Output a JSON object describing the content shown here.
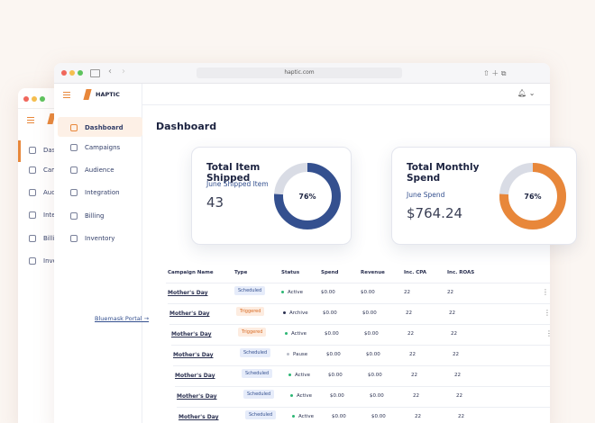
{
  "browser": {
    "url": "haptic.com"
  },
  "brand": "HAPTIC",
  "sidebar": {
    "items": [
      "Dashboard",
      "Campaigns",
      "Audience",
      "Integration",
      "Billing",
      "Inventory"
    ],
    "portal": "Bluemask Portal →"
  },
  "page_title": "Dashboard",
  "cards": [
    {
      "title": "Total Item Shipped",
      "subtitle": "June Shipped Item",
      "value": "43",
      "percent": {
        "value": 76,
        "label": "76%"
      },
      "color": "#34508f"
    },
    {
      "title": "Total Monthly Spend",
      "subtitle": "June Spend",
      "value": "$764.24",
      "percent": {
        "value": 76,
        "label": "76%"
      },
      "color": "#e8873a"
    }
  ],
  "table": {
    "columns": [
      "Campaign Name",
      "Type",
      "Status",
      "Spend",
      "Revenue",
      "Inc. CPA",
      "Inc. ROAS"
    ],
    "rows": [
      [
        "Mother's Day",
        "Scheduled",
        "Active",
        "$0.00",
        "$0.00",
        22,
        22
      ],
      [
        "Mother's Day",
        "Triggered",
        "Archive",
        "$0.00",
        "$0.00",
        22,
        22
      ],
      [
        "Mother's Day",
        "Triggered",
        "Active",
        "$0.00",
        "$0.00",
        22,
        22
      ],
      [
        "Mother's Day",
        "Scheduled",
        "Pause",
        "$0.00",
        "$0.00",
        22,
        22
      ],
      [
        "Mother's Day",
        "Scheduled",
        "Active",
        "$0.00",
        "$0.00",
        22,
        22
      ],
      [
        "Mother's Day",
        "Scheduled",
        "Active",
        "$0.00",
        "$0.00",
        22,
        22
      ],
      [
        "Mother's Day",
        "Scheduled",
        "Active",
        "$0.00",
        "$0.00",
        22,
        22
      ]
    ]
  }
}
